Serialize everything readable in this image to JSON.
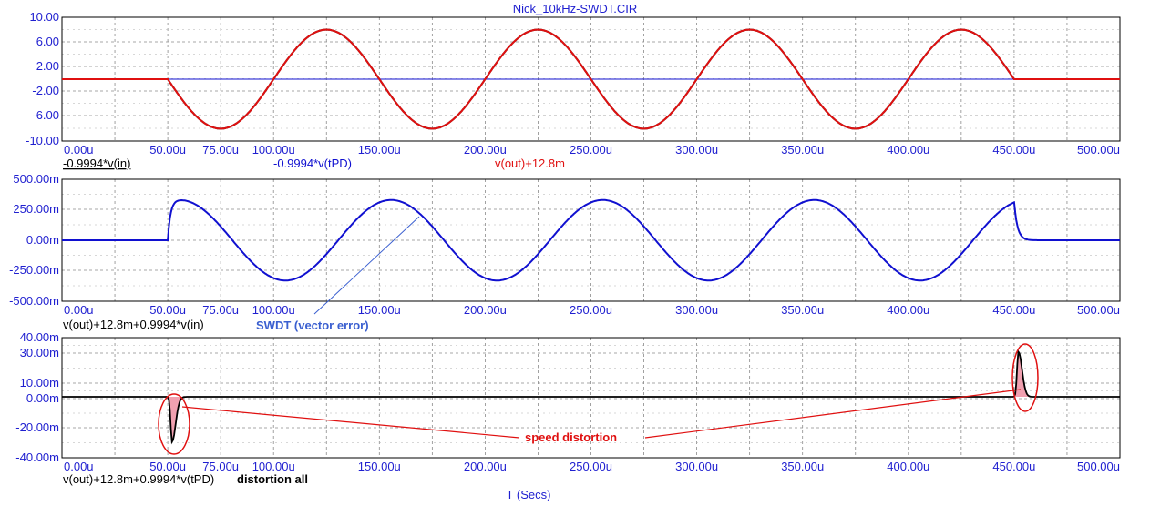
{
  "title": "Nick_10kHz-SWDT.CIR",
  "x_axis_label": "T (Secs)",
  "colors": {
    "axis_text": "#1f1fd0",
    "trace_red": "#e01010",
    "trace_black": "#000000",
    "trace_blue": "#1010d0",
    "annotation_red": "#e01010",
    "annotation_blue": "#3a5fd0",
    "fill_pink": "#f0a0b0"
  },
  "chart_data": [
    {
      "type": "line",
      "x_ticks": [
        "0.00u",
        "50.00u",
        "75.00u",
        "100.00u",
        "150.00u",
        "200.00u",
        "250.00u",
        "300.00u",
        "350.00u",
        "400.00u",
        "450.00u",
        "500.00u"
      ],
      "y_ticks": [
        "10.00",
        "6.00",
        "2.00",
        "-2.00",
        "-6.00",
        "-10.00"
      ],
      "xlim": [
        0,
        500
      ],
      "ylim": [
        -10,
        10
      ],
      "grid": true,
      "trace_labels": [
        "-0.9994*v(in)",
        "-0.9994*v(tPD)",
        "v(out)+12.8m"
      ],
      "series": [
        {
          "name": "-0.9994*v(in)",
          "kind": "sine",
          "t_start": 50,
          "t_end": 450,
          "amplitude": 8.0,
          "period": 100,
          "sign": -1,
          "color": "black"
        },
        {
          "name": "-0.9994*v(tPD)",
          "kind": "constant",
          "value": 0.0,
          "color": "blue"
        },
        {
          "name": "v(out)+12.8m",
          "kind": "sine",
          "t_start": 50,
          "t_end": 450,
          "amplitude": 8.0,
          "period": 100,
          "sign": -1,
          "color": "red"
        }
      ]
    },
    {
      "type": "line",
      "x_ticks": [
        "0.00u",
        "50.00u",
        "75.00u",
        "100.00u",
        "150.00u",
        "200.00u",
        "250.00u",
        "300.00u",
        "350.00u",
        "400.00u",
        "450.00u",
        "500.00u"
      ],
      "y_ticks": [
        "500.00m",
        "250.00m",
        "0.00m",
        "-250.00m",
        "-500.00m"
      ],
      "xlim": [
        0,
        500
      ],
      "ylim": [
        -500,
        500
      ],
      "grid": true,
      "trace_labels": [
        "v(out)+12.8m+0.9994*v(in)"
      ],
      "annotations": [
        "SWDT (vector error)"
      ],
      "series": [
        {
          "name": "v(out)+12.8m+0.9994*v(in)",
          "kind": "sine_error",
          "t_start": 50,
          "t_end": 450,
          "amplitude": 355,
          "period": 100,
          "color": "blue"
        }
      ]
    },
    {
      "type": "line",
      "x_ticks": [
        "0.00u",
        "50.00u",
        "75.00u",
        "100.00u",
        "150.00u",
        "200.00u",
        "250.00u",
        "300.00u",
        "350.00u",
        "400.00u",
        "450.00u",
        "500.00u"
      ],
      "y_ticks": [
        "40.00m",
        "30.00m",
        "10.00m",
        "0.00m",
        "-20.00m",
        "-40.00m"
      ],
      "xlim": [
        0,
        500
      ],
      "ylim": [
        -40,
        40
      ],
      "grid": true,
      "trace_labels": [
        "v(out)+12.8m+0.9994*v(tPD)"
      ],
      "annotations": [
        "distortion all",
        "speed distortion"
      ],
      "series": [
        {
          "name": "v(out)+12.8m+0.9994*v(tPD)",
          "kind": "spikes",
          "spike1": {
            "t": 52,
            "value": -30
          },
          "spike2": {
            "t": 452,
            "value": 30
          },
          "color": "black"
        }
      ]
    }
  ]
}
